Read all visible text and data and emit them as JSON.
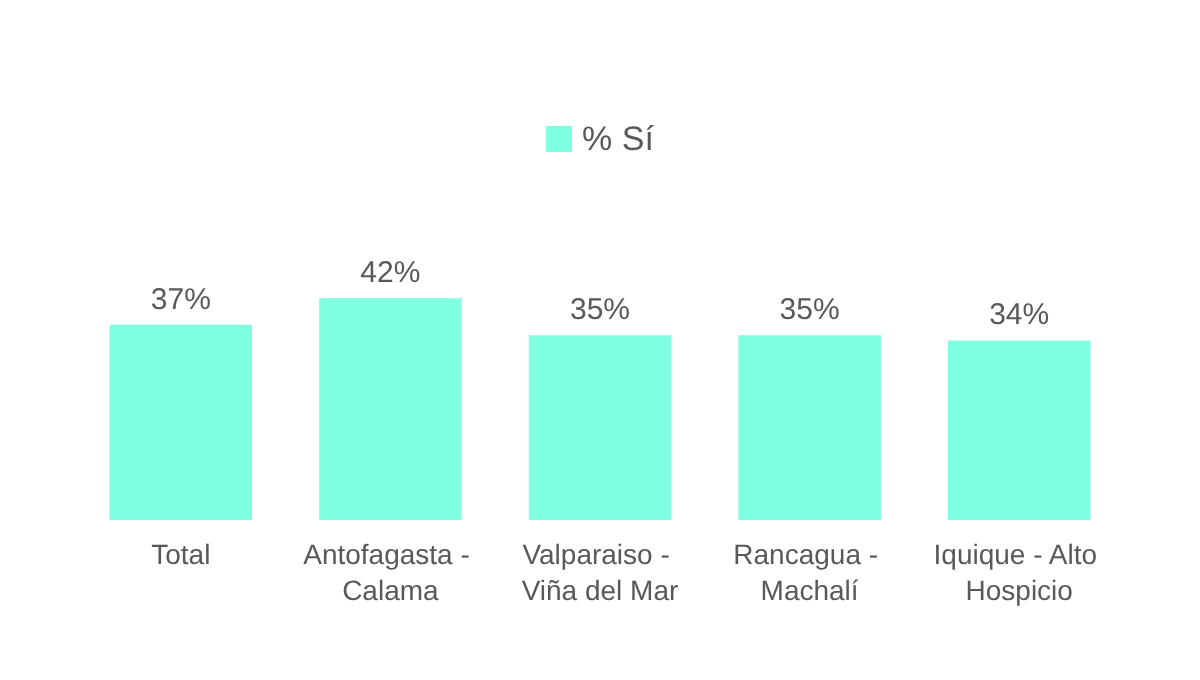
{
  "chart_data": {
    "type": "bar",
    "categories": [
      "Total",
      "Antofagasta - Calama",
      "Valparaiso - Viña del Mar",
      "Rancagua - Machalí",
      "Iquique - Alto Hospicio"
    ],
    "series": [
      {
        "name": "% Sí",
        "color": "#7fffdf",
        "values": [
          37,
          42,
          35,
          35,
          34
        ],
        "value_labels": [
          "37%",
          "42%",
          "35%",
          "35%",
          "34%"
        ]
      }
    ],
    "legend": "top",
    "grid": false
  }
}
